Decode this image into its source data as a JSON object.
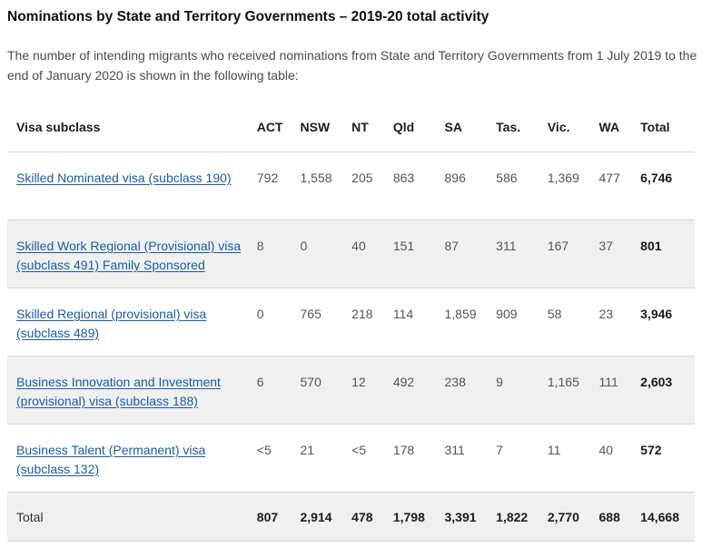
{
  "heading": "Nominations by State and Territory Governments – 2019-20 total activity",
  "intro": "The number of intending migrants who received nominations from State and Territory Governments from 1 July 2019 to the end of January 2020 is shown in the following table:",
  "table": {
    "columns": [
      "Visa subclass",
      "ACT",
      "NSW",
      "NT",
      "Qld",
      "SA",
      "Tas.",
      "Vic.",
      "WA",
      "Total"
    ],
    "rows": [
      {
        "visa": "Skilled Nominated visa (subclass 190)",
        "values": [
          "792",
          "1,558",
          "205",
          "863",
          "896",
          "586",
          "1,369",
          "477"
        ],
        "total": "6,746"
      },
      {
        "visa": "Skilled Work Regional (Provisional) visa (subclass 491) Family Sponsored",
        "values": [
          "8",
          "0",
          "40",
          "151",
          "87",
          "311",
          "167",
          "37"
        ],
        "total": "801"
      },
      {
        "visa": "Skilled Regional (provisional) visa (subclass 489)",
        "values": [
          "0",
          "765",
          "218",
          "114",
          "1,859",
          "909",
          "58",
          "23"
        ],
        "total": "3,946"
      },
      {
        "visa": "Business Innovation and Investment (provisional) visa (subclass 188)",
        "values": [
          "6",
          "570",
          "12",
          "492",
          "238",
          "9",
          "1,165",
          "111"
        ],
        "total": "2,603"
      },
      {
        "visa": "Business Talent (Permanent) visa (subclass 132)",
        "values": [
          "<5",
          "21",
          "<5",
          "178",
          "311",
          "7",
          "11",
          "40"
        ],
        "total": "572"
      }
    ],
    "totals": {
      "label": "Total",
      "values": [
        "807",
        "2,914",
        "478",
        "1,798",
        "3,391",
        "1,822",
        "2,770",
        "688"
      ],
      "total": "14,668"
    }
  },
  "colors": {
    "link": "#1a5ca8",
    "stripe": "#f0f0f0",
    "divider": "#d6d6d6"
  }
}
